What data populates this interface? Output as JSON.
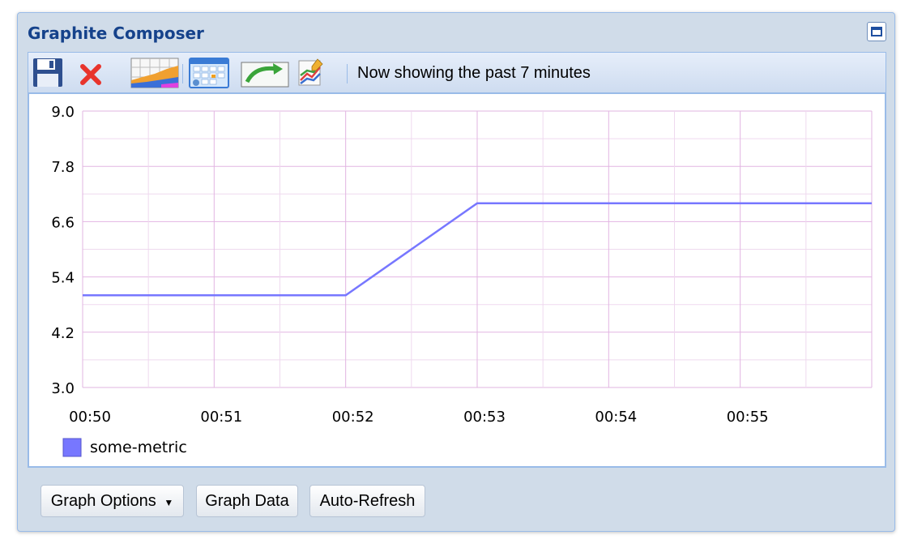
{
  "window": {
    "title": "Graphite Composer"
  },
  "toolbar": {
    "buttons": [
      {
        "name": "save-icon"
      },
      {
        "name": "delete-icon"
      },
      {
        "name": "graph-data-icon"
      },
      {
        "name": "calendar-icon"
      },
      {
        "name": "redo-icon"
      },
      {
        "name": "edit-graph-icon"
      }
    ],
    "status": "Now showing the past 7 minutes"
  },
  "colors": {
    "series": "#7777ff",
    "grid_major": "#e2b5e2",
    "grid_minor": "#efd9ef",
    "title": "#15428b"
  },
  "chart_data": {
    "type": "line",
    "title": "",
    "xlabel": "",
    "ylabel": "",
    "x_ticks": [
      "00:50",
      "00:51",
      "00:52",
      "00:53",
      "00:54",
      "00:55"
    ],
    "y_ticks": [
      "9.0",
      "7.8",
      "6.6",
      "5.4",
      "4.2",
      "3.0"
    ],
    "xlim": [
      0,
      6
    ],
    "ylim": [
      3.0,
      9.0
    ],
    "grid": true,
    "legend": "bottom-left",
    "series": [
      {
        "name": "some-metric",
        "color": "#7777ff",
        "points": [
          [
            0,
            5
          ],
          [
            2,
            5
          ],
          [
            3,
            7
          ],
          [
            6,
            7
          ]
        ]
      }
    ]
  },
  "buttons": {
    "graph_options": "Graph Options",
    "graph_data": "Graph Data",
    "auto_refresh": "Auto-Refresh"
  }
}
